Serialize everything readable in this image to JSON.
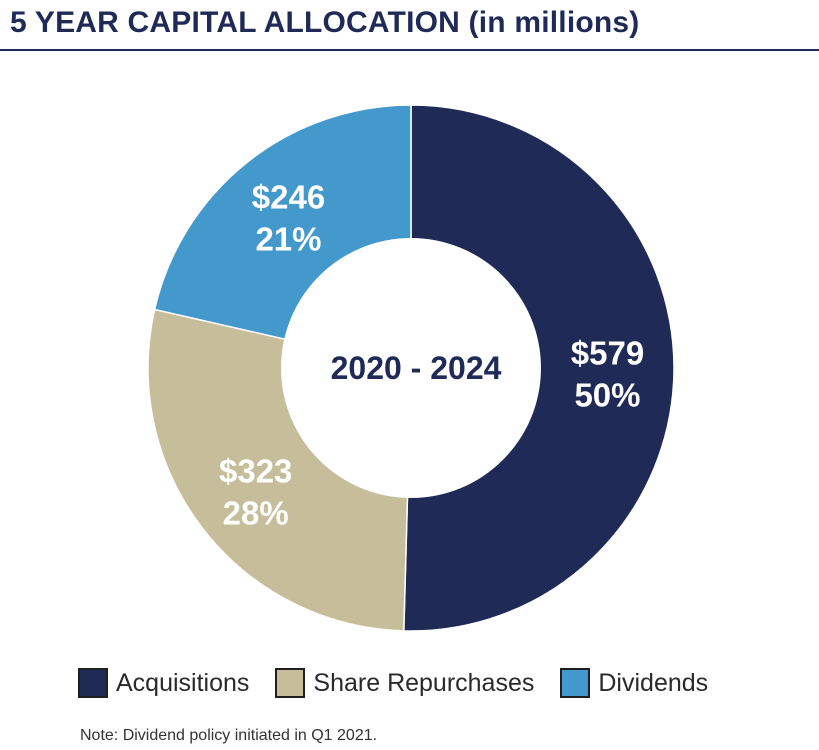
{
  "title": "5 YEAR CAPITAL ALLOCATION (in millions)",
  "note": "Note: Dividend policy initiated in Q1 2021.",
  "colors": {
    "acquisitions": "#1f2a56",
    "share_repurchases": "#c6bd9a",
    "dividends": "#4499cc",
    "text_dark": "#1f2a56"
  },
  "chart_data": {
    "type": "pie",
    "donut": true,
    "center_label": "2020 - 2024",
    "units": "millions",
    "slices": [
      {
        "name": "Acquisitions",
        "value": 579,
        "value_label": "$579",
        "percent_label": "50%",
        "color": "#1f2a56"
      },
      {
        "name": "Share Repurchases",
        "value": 323,
        "value_label": "$323",
        "percent_label": "28%",
        "color": "#c6bd9a"
      },
      {
        "name": "Dividends",
        "value": 246,
        "value_label": "$246",
        "percent_label": "21%",
        "color": "#4499cc"
      }
    ],
    "legend": [
      "Acquisitions",
      "Share Repurchases",
      "Dividends"
    ],
    "legend_position": "bottom"
  }
}
